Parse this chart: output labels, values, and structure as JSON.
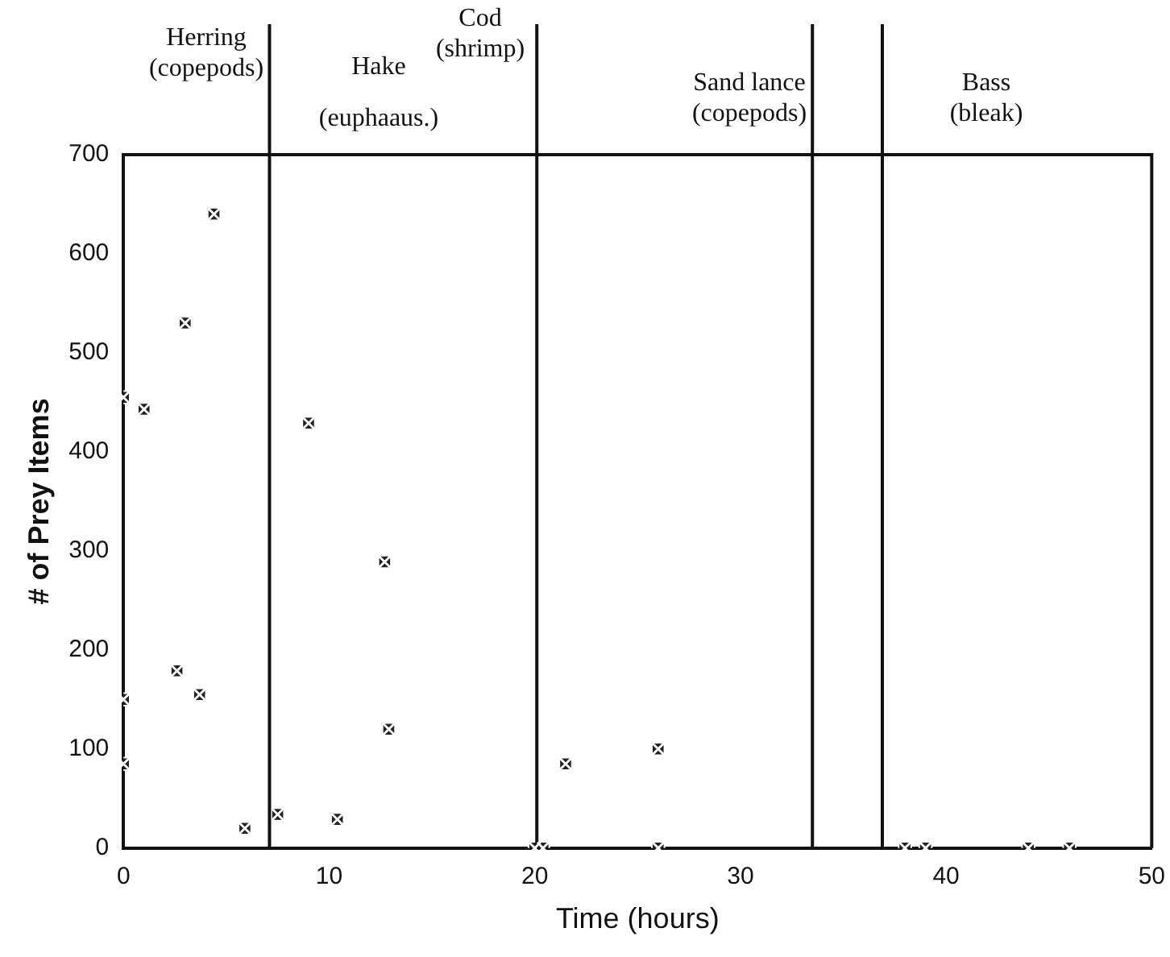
{
  "chart_data": {
    "type": "scatter",
    "xlabel": "Time (hours)",
    "ylabel": "# of Prey Items",
    "x": [
      0,
      1,
      0,
      0,
      2.6,
      3,
      3.7,
      4.4,
      5.9,
      7.5,
      9,
      10.4,
      12.7,
      12.9,
      20,
      20.4,
      21.5,
      26,
      26,
      38,
      39,
      44,
      46
    ],
    "series": [
      {
        "color": "#222222",
        "values": [
          455,
          443,
          150,
          85,
          179,
          530,
          155,
          640,
          20,
          34,
          429,
          29,
          289,
          120,
          0,
          0,
          85,
          100,
          0,
          0,
          0,
          0,
          0
        ]
      }
    ],
    "xlim": [
      0,
      50
    ],
    "xticks": [
      0,
      10,
      20,
      30,
      40,
      50
    ],
    "ylim": [
      0,
      700
    ],
    "yticks": [
      0,
      100,
      200,
      300,
      400,
      500,
      600,
      700
    ],
    "grid": false,
    "legend": false,
    "marker": "square",
    "ref_lines": [
      {
        "axis": "x",
        "value": 7.1,
        "color": "#111111"
      },
      {
        "axis": "x",
        "value": 20.1,
        "color": "#111111"
      },
      {
        "axis": "x",
        "value": 33.5,
        "color": "#111111"
      },
      {
        "axis": "x",
        "value": 36.9,
        "color": "#111111"
      }
    ],
    "annotations": [
      "Herring (copepods)",
      "Hake (euphaaus.)",
      "Cod (shrimp)",
      "Sand lance (copepods)",
      "Bass (bleak)"
    ]
  }
}
